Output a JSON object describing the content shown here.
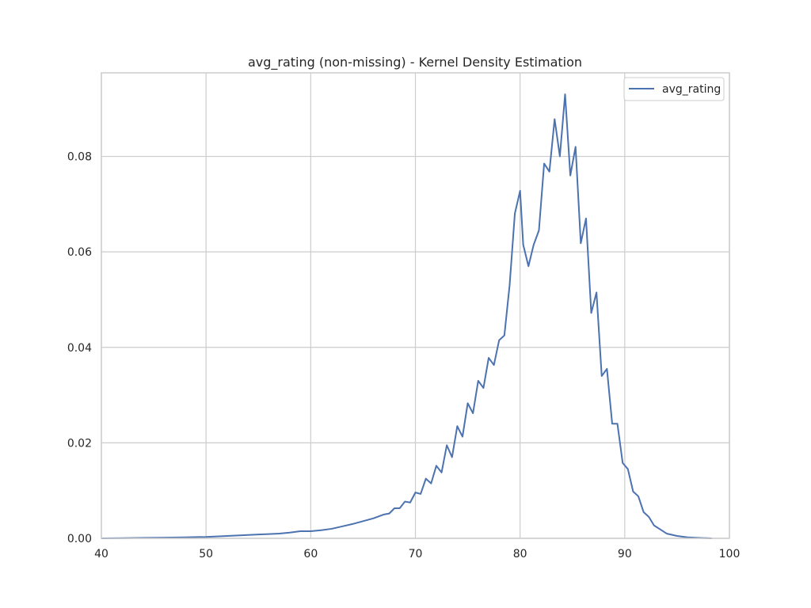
{
  "chart_data": {
    "type": "line",
    "title": "avg_rating (non-missing) - Kernel Density Estimation",
    "xlabel": "",
    "ylabel": "",
    "xlim": [
      40,
      100
    ],
    "ylim": [
      0,
      0.0975
    ],
    "xticks": [
      40,
      50,
      60,
      70,
      80,
      90,
      100
    ],
    "yticks": [
      0.0,
      0.02,
      0.04,
      0.06,
      0.08
    ],
    "ytick_labels": [
      "0.00",
      "0.02",
      "0.04",
      "0.06",
      "0.08"
    ],
    "grid": true,
    "legend_position": "top-right",
    "series": [
      {
        "name": "avg_rating",
        "color": "#4c72b0",
        "x": [
          40,
          42,
          44,
          46,
          48,
          50,
          51,
          52,
          53,
          54,
          55,
          56,
          57,
          58,
          59,
          60,
          61,
          62,
          63,
          64,
          65,
          66,
          67,
          67.5,
          68,
          68.5,
          69,
          69.5,
          70,
          70.5,
          71,
          71.5,
          72,
          72.5,
          73,
          73.5,
          74,
          74.5,
          75,
          75.5,
          76,
          76.5,
          77,
          77.5,
          78,
          78.5,
          79,
          79.5,
          80,
          80.3,
          80.8,
          81.3,
          81.8,
          82.3,
          82.8,
          83.3,
          83.8,
          84.3,
          84.8,
          85.3,
          85.8,
          86.3,
          86.8,
          87.3,
          87.8,
          88.3,
          88.8,
          89.3,
          89.8,
          90.3,
          90.8,
          91.3,
          91.8,
          92.3,
          92.8,
          93.3,
          94,
          95,
          96,
          97,
          98.3
        ],
        "y": [
          0.0,
          5e-05,
          0.0001,
          0.00015,
          0.0002,
          0.0003,
          0.0004,
          0.0005,
          0.0006,
          0.0007,
          0.0008,
          0.0009,
          0.001,
          0.0012,
          0.0015,
          0.0015,
          0.0017,
          0.002,
          0.0025,
          0.003,
          0.0036,
          0.0042,
          0.005,
          0.0052,
          0.0063,
          0.0063,
          0.0077,
          0.0075,
          0.0096,
          0.0093,
          0.0125,
          0.0115,
          0.0152,
          0.0138,
          0.0195,
          0.017,
          0.0235,
          0.0213,
          0.0283,
          0.0262,
          0.033,
          0.0315,
          0.0378,
          0.0363,
          0.0415,
          0.0425,
          0.053,
          0.068,
          0.0728,
          0.0615,
          0.057,
          0.0615,
          0.0645,
          0.0785,
          0.0768,
          0.0878,
          0.08,
          0.093,
          0.076,
          0.082,
          0.0618,
          0.067,
          0.0472,
          0.0515,
          0.034,
          0.0355,
          0.024,
          0.024,
          0.0158,
          0.0145,
          0.0098,
          0.0088,
          0.0055,
          0.0045,
          0.0027,
          0.002,
          0.001,
          0.0005,
          0.0002,
          0.0001,
          0.0
        ]
      }
    ]
  }
}
